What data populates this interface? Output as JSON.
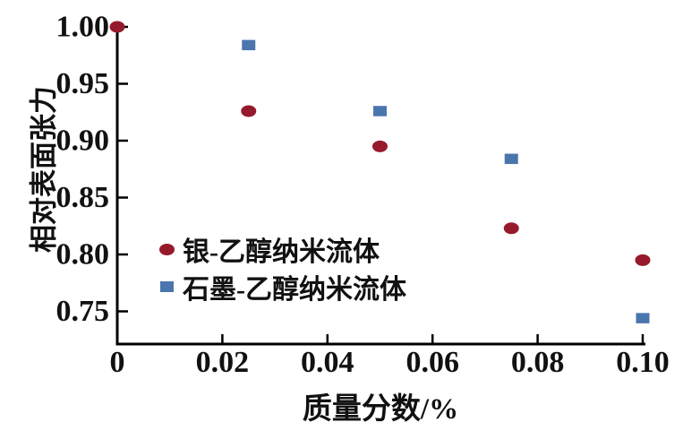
{
  "chart_data": {
    "type": "scatter",
    "title": "",
    "xlabel": "质量分数/%",
    "ylabel": "相对表面张力",
    "xlim": [
      0,
      0.1
    ],
    "ylim": [
      0.72,
      1.0
    ],
    "grid": false,
    "legend_position": "inside-left-middle",
    "xticks": {
      "values": [
        0,
        0.02,
        0.04,
        0.06,
        0.08,
        0.1
      ],
      "labels": [
        "0",
        "0.02",
        "0.04",
        "0.06",
        "0.08",
        "0.10"
      ]
    },
    "yticks": {
      "values": [
        0.75,
        0.8,
        0.85,
        0.9,
        0.95,
        1.0
      ],
      "labels": [
        "0.75",
        "0.80",
        "0.85",
        "0.90",
        "0.95",
        "1.00"
      ]
    },
    "series": [
      {
        "name": "银-乙醇纳米流体",
        "marker": "circle",
        "color": "#96192c",
        "x": [
          0,
          0.025,
          0.05,
          0.075,
          0.1
        ],
        "y": [
          1.0,
          0.926,
          0.895,
          0.823,
          0.795
        ]
      },
      {
        "name": "石墨-乙醇纳米流体",
        "marker": "square",
        "color": "#4a76ad",
        "x": [
          0.025,
          0.05,
          0.075,
          0.1
        ],
        "y": [
          0.984,
          0.926,
          0.884,
          0.744
        ]
      }
    ],
    "axis_color": "#000000",
    "text_color": "#111111",
    "background": "#ffffff"
  }
}
